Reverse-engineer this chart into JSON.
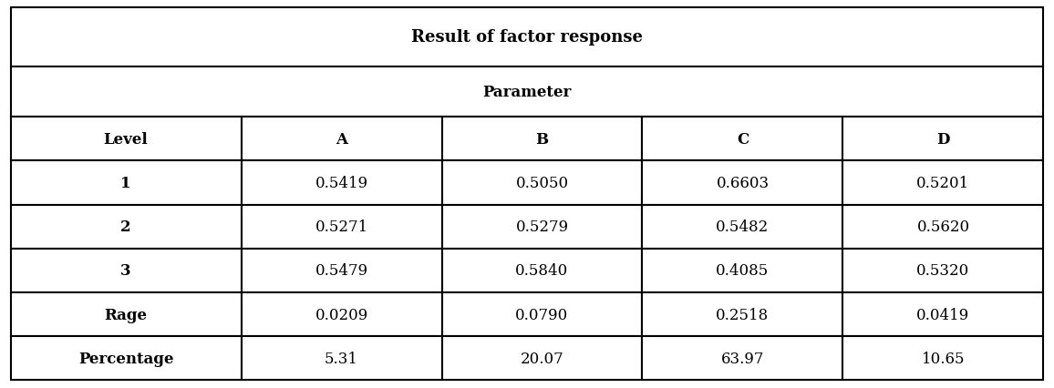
{
  "title1": "Result of factor response",
  "title2": "Parameter",
  "col_headers": [
    "Level",
    "A",
    "B",
    "C",
    "D"
  ],
  "rows": [
    [
      "1",
      "0.5419",
      "0.5050",
      "0.6603",
      "0.5201"
    ],
    [
      "2",
      "0.5271",
      "0.5279",
      "0.5482",
      "0.5620"
    ],
    [
      "3",
      "0.5479",
      "0.5840",
      "0.4085",
      "0.5320"
    ],
    [
      "Rage",
      "0.0209",
      "0.0790",
      "0.2518",
      "0.0419"
    ],
    [
      "Percentage",
      "5.31",
      "20.07",
      "63.97",
      "10.65"
    ]
  ],
  "bg_color": "#ffffff",
  "border_color": "#000000",
  "text_color": "#000000",
  "figsize": [
    11.56,
    4.27
  ],
  "dpi": 100,
  "title1_fontsize": 13,
  "title2_fontsize": 12,
  "header_fontsize": 12,
  "cell_fontsize": 12
}
